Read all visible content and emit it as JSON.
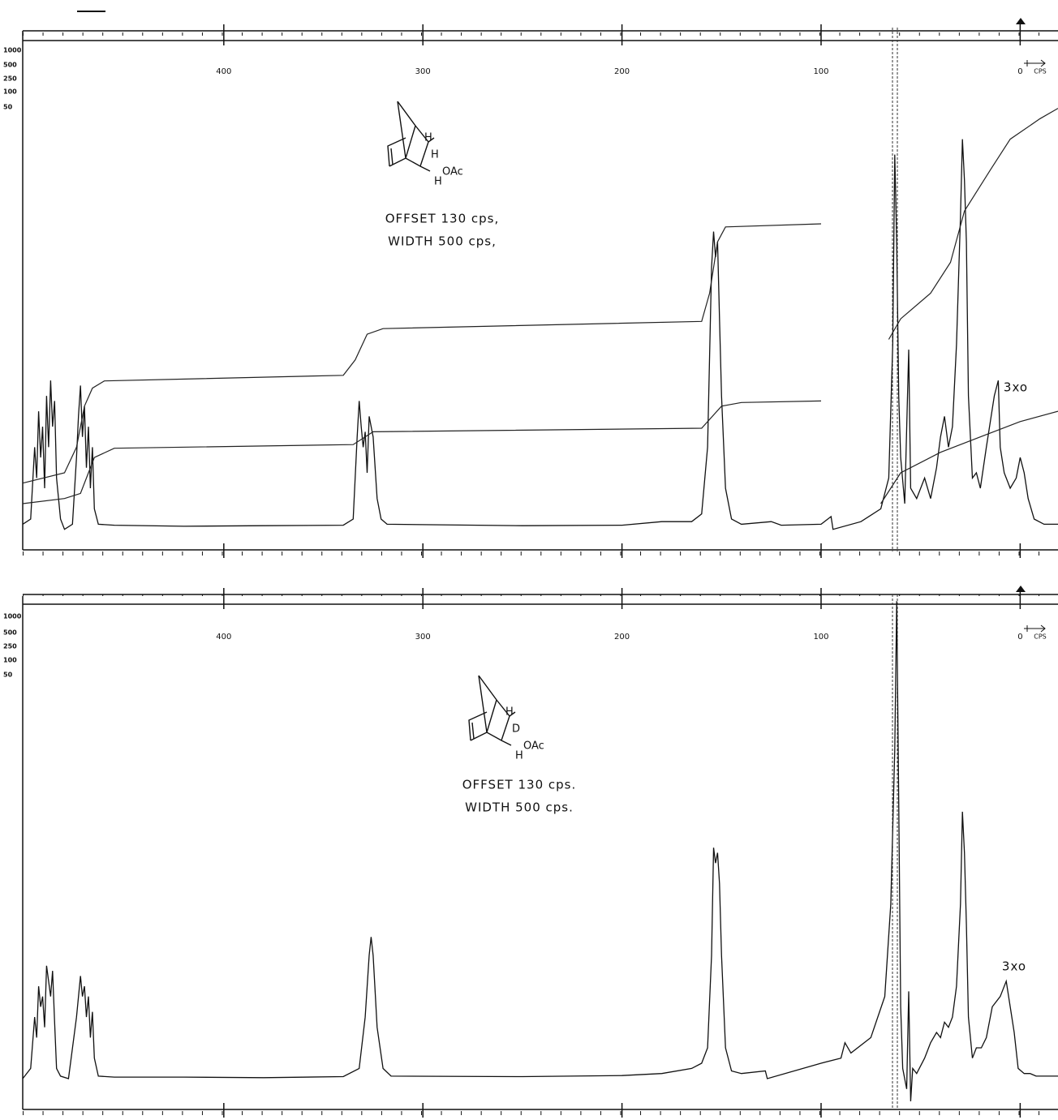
{
  "chart_data": [
    {
      "type": "line",
      "xlim": [
        501,
        -19
      ],
      "ylim": [
        0,
        100
      ],
      "xticks": [
        400,
        300,
        200,
        100,
        0
      ],
      "x_unit": "CPS",
      "sensitivity_labels": [
        "1000",
        "500",
        "250",
        "100",
        "50"
      ],
      "structure_labels": [
        "H",
        "H",
        "OAc",
        "H"
      ],
      "notes": [
        "OFFSET 130 cps,",
        "WIDTH 500 cps,"
      ],
      "annotation": "3xo",
      "series": [
        {
          "color": "#111111",
          "x": [
            501,
            497,
            495,
            494,
            493,
            492,
            491,
            490,
            489,
            488,
            487,
            486,
            485,
            484,
            482,
            480,
            476,
            474,
            473,
            472,
            471,
            470,
            469,
            468,
            467,
            466,
            465,
            463,
            455,
            420,
            380,
            340,
            335,
            333,
            332,
            331,
            330,
            329,
            328,
            327,
            325,
            323,
            321,
            318,
            250,
            200,
            180,
            165,
            160,
            157,
            155,
            154,
            153,
            152,
            151,
            150,
            148,
            145,
            140,
            125,
            120,
            100,
            95,
            94,
            80,
            70,
            66,
            64,
            63,
            62,
            61,
            60,
            58,
            56,
            55,
            52,
            48,
            45,
            42,
            40,
            38,
            36,
            34,
            32,
            30,
            29,
            28,
            27,
            26,
            24,
            22,
            20,
            17,
            15,
            13,
            11,
            10,
            8,
            5,
            2,
            0,
            -2,
            -4,
            -7,
            -12,
            -19
          ],
          "values": [
            5,
            6,
            20,
            14,
            27,
            18,
            24,
            12,
            30,
            20,
            33,
            24,
            29,
            14,
            6,
            4,
            5,
            18,
            26,
            32,
            22,
            28,
            16,
            24,
            12,
            20,
            8,
            5,
            4.8,
            4.6,
            4.7,
            4.8,
            6,
            22,
            29,
            24,
            20,
            23,
            15,
            26,
            22,
            10,
            6,
            5,
            4.7,
            4.8,
            5.5,
            5.5,
            7,
            20,
            55,
            62,
            57,
            60,
            45,
            30,
            12,
            6,
            5,
            5.5,
            4.8,
            5,
            6.5,
            4,
            5.5,
            8,
            14,
            40,
            77,
            60,
            30,
            18,
            9,
            39,
            12,
            10,
            14,
            10,
            16,
            22,
            26,
            20,
            24,
            40,
            65,
            80,
            72,
            60,
            30,
            14,
            15,
            12,
            20,
            25,
            30,
            33,
            20,
            15,
            12,
            14,
            18,
            15,
            10,
            6,
            5,
            5
          ]
        },
        {
          "color": "#222222",
          "x": [
            501,
            480,
            474,
            470,
            466,
            460,
            340,
            334,
            328,
            320,
            160,
            156,
            152,
            148,
            100,
            90,
            66,
            60,
            45,
            35,
            28,
            15,
            5,
            -10,
            -19
          ],
          "values": [
            13,
            15,
            20,
            28,
            31.5,
            32.9,
            34,
            37,
            42,
            43.1,
            44.5,
            50,
            60,
            62.9,
            63.5,
            null,
            41,
            45,
            50,
            56,
            66,
            74,
            80,
            84,
            86
          ]
        },
        {
          "color": "#222222",
          "x": [
            501,
            480,
            472,
            465,
            455,
            335,
            325,
            160,
            150,
            140,
            100,
            90,
            70,
            60,
            40,
            20,
            0,
            -19
          ],
          "values": [
            9,
            10,
            11,
            18,
            19.8,
            20.5,
            23,
            23.7,
            28,
            28.7,
            29,
            null,
            9,
            15,
            19,
            22,
            25,
            27
          ]
        }
      ]
    },
    {
      "type": "line",
      "xlim": [
        501,
        -19
      ],
      "ylim": [
        0,
        100
      ],
      "xticks": [
        400,
        300,
        200,
        100,
        0
      ],
      "x_unit": "CPS",
      "sensitivity_labels": [
        "1000",
        "500",
        "250",
        "100",
        "50"
      ],
      "structure_labels": [
        "H",
        "D",
        "OAc",
        "H"
      ],
      "notes": [
        "OFFSET 130 cps.",
        "WIDTH 500 cps."
      ],
      "annotation": "3xo",
      "series": [
        {
          "color": "#111111",
          "x": [
            501,
            497,
            495,
            494,
            493,
            492,
            491,
            490,
            489,
            487,
            486,
            485,
            484,
            482,
            478,
            474,
            472,
            471,
            470,
            469,
            468,
            467,
            466,
            465,
            463,
            455,
            420,
            380,
            340,
            332,
            329,
            327,
            326,
            325,
            323,
            320,
            316,
            250,
            200,
            180,
            165,
            160,
            157,
            155,
            154,
            153,
            152,
            151,
            150,
            148,
            145,
            140,
            128,
            127,
            100,
            90,
            88,
            85,
            75,
            68,
            65,
            63,
            62,
            61,
            60,
            59,
            57,
            56,
            55,
            54,
            52,
            48,
            45,
            42,
            40,
            38,
            36,
            34,
            32,
            30,
            29,
            28,
            27,
            26,
            24,
            22,
            19.5,
            17,
            14,
            10,
            7,
            5,
            3,
            1,
            -2,
            -5,
            -8,
            -12,
            -19
          ],
          "values": [
            6,
            8,
            18,
            14,
            24,
            20,
            22,
            16,
            28,
            22,
            27,
            17,
            8,
            6.5,
            6,
            18,
            26,
            22,
            24,
            18,
            22,
            14,
            19,
            10,
            6.5,
            6.3,
            6.3,
            6.2,
            6.4,
            8,
            18,
            30,
            33.6,
            30,
            16,
            8,
            6.5,
            6.4,
            6.6,
            7,
            8,
            9,
            12,
            30,
            51,
            48,
            50,
            44,
            30,
            12,
            7.5,
            7,
            7.5,
            6,
            9,
            10,
            13,
            11,
            14,
            22,
            40,
            70,
            99,
            60,
            20,
            8,
            4,
            23,
            1.6,
            8,
            7,
            10,
            13,
            15,
            14,
            17,
            16,
            18,
            24,
            40,
            58,
            50,
            36,
            18,
            10,
            12,
            12,
            14,
            20,
            22,
            25,
            20,
            15,
            8,
            7,
            7,
            6.5,
            6.5,
            6.5
          ]
        }
      ]
    }
  ]
}
